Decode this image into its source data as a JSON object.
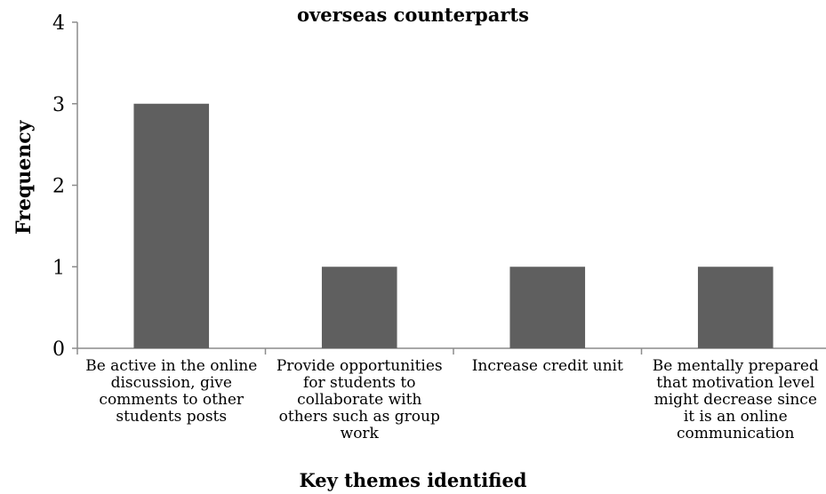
{
  "chart_data": {
    "type": "bar",
    "title_visible": "overseas counterparts",
    "categories": [
      "Be active in the online discussion, give comments to other students posts",
      "Provide opportunities for students to collaborate with others such as group work",
      "Increase credit unit",
      "Be mentally prepared that motivation level might decrease since it is an online communication"
    ],
    "category_lines": [
      [
        "Be active in the online",
        "discussion, give",
        "comments to other",
        "students posts"
      ],
      [
        "Provide opportunities",
        "for students to",
        "collaborate with",
        "others such as group",
        "work"
      ],
      [
        "Increase credit unit"
      ],
      [
        "Be mentally prepared",
        "that motivation level",
        "might decrease since",
        "it is an online",
        "communication"
      ]
    ],
    "values": [
      3,
      1,
      1,
      1
    ],
    "xlabel": "Key themes identified",
    "ylabel": "Frequency",
    "ylim": [
      0,
      4
    ],
    "yticks": [
      "0",
      "1",
      "2",
      "3",
      "4"
    ],
    "bar_color": "#5f5f5f",
    "axis_color": "#8c8c8c",
    "grid": false
  }
}
